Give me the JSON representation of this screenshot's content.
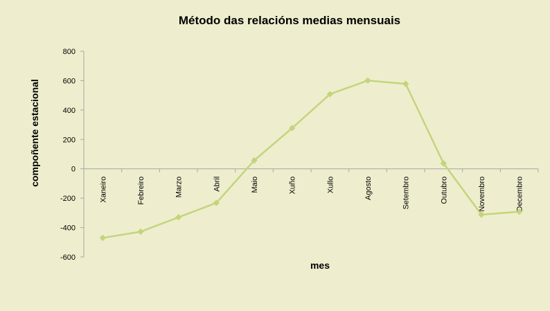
{
  "chart_data": {
    "type": "line",
    "title": "Método das relacións medias mensuais",
    "xlabel": "mes",
    "ylabel": "compoñente estacional",
    "categories": [
      "Xaneiro",
      "Febreiro",
      "Marzo",
      "Abril",
      "Maio",
      "Xuño",
      "Xullo",
      "Agosto",
      "Setembro",
      "Outubro",
      "Novembro",
      "Decembro"
    ],
    "series": [
      {
        "values": [
          -470,
          -428,
          -330,
          -232,
          57,
          277,
          508,
          601,
          578,
          37,
          -312,
          -292
        ],
        "color": "#C4D47C",
        "marker": "diamond"
      }
    ],
    "ylim": [
      -600,
      800
    ],
    "yticks": [
      "800",
      "600",
      "400",
      "200",
      "0",
      "-200",
      "-400",
      "-600"
    ],
    "ytick_values": [
      800,
      600,
      400,
      200,
      0,
      -200,
      -400,
      -600
    ],
    "grid": false,
    "legend": "none",
    "background": "#EEEECE",
    "axis_color": "#A6A6A6"
  }
}
